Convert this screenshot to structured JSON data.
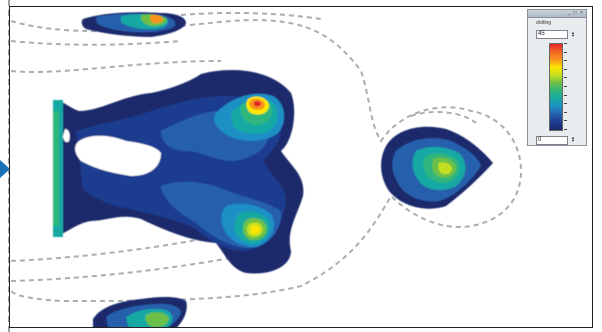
{
  "legend": {
    "title": "dotting",
    "max_value": "45",
    "min_value": "0",
    "window_buttons": "_ □ ×"
  },
  "colors": {
    "ramp": [
      "#e4242b",
      "#f26522",
      "#f7941d",
      "#fde600",
      "#c4df22",
      "#6cc04a",
      "#2eb67d",
      "#17a9a4",
      "#1c8fc4",
      "#2560ad",
      "#1d3c8f",
      "#1a2a6c"
    ],
    "outline": "#a8aeb4",
    "frame": "#222222",
    "arrow": "#1a6fb5"
  }
}
